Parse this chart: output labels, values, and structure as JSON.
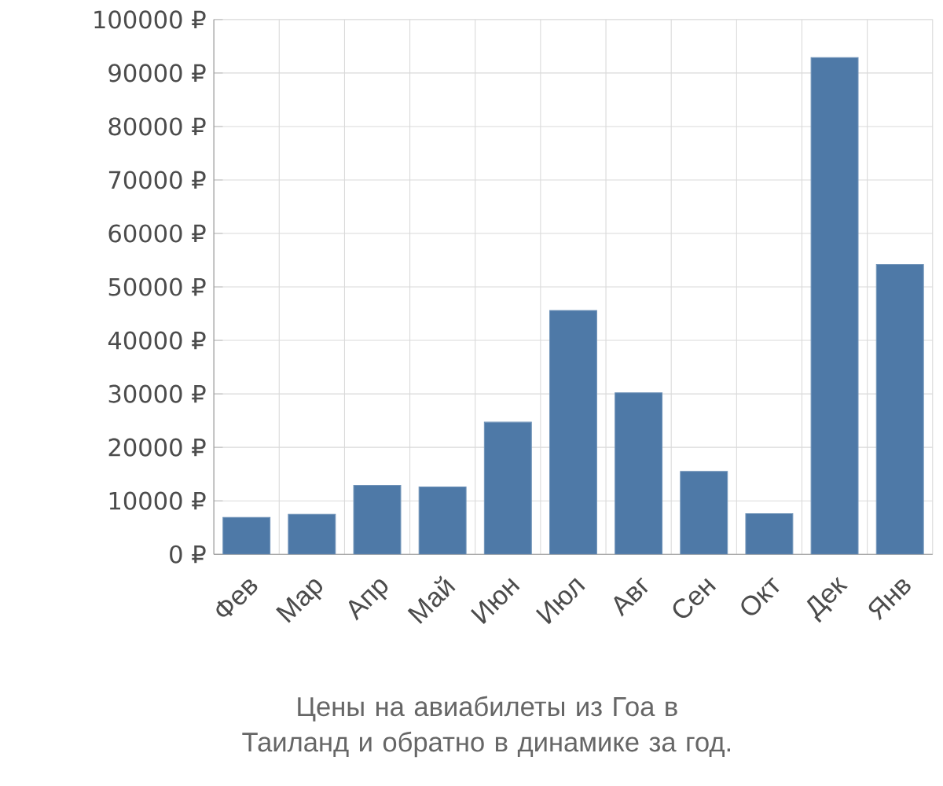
{
  "chart_data": {
    "type": "bar",
    "categories": [
      "Фев",
      "Мар",
      "Апр",
      "Май",
      "Июн",
      "Июл",
      "Авг",
      "Сен",
      "Окт",
      "Дек",
      "Янв"
    ],
    "values": [
      6900,
      7500,
      12900,
      12600,
      24700,
      45600,
      30200,
      15500,
      7600,
      92900,
      54200
    ],
    "color": "#4e79a7",
    "ylim": [
      0,
      100000
    ],
    "yticks": [
      {
        "value": 0,
        "label": "0 ₽"
      },
      {
        "value": 10000,
        "label": "10000 ₽"
      },
      {
        "value": 20000,
        "label": "20000 ₽"
      },
      {
        "value": 30000,
        "label": "30000 ₽"
      },
      {
        "value": 40000,
        "label": "40000 ₽"
      },
      {
        "value": 50000,
        "label": "50000 ₽"
      },
      {
        "value": 60000,
        "label": "60000 ₽"
      },
      {
        "value": 70000,
        "label": "70000 ₽"
      },
      {
        "value": 80000,
        "label": "80000 ₽"
      },
      {
        "value": 90000,
        "label": "90000 ₽"
      },
      {
        "value": 100000,
        "label": "100000 ₽"
      }
    ],
    "grid": true,
    "annotations": [
      "Цены на авиабилеты из Гоа в Таиланд и обратно в динамике за год."
    ]
  }
}
